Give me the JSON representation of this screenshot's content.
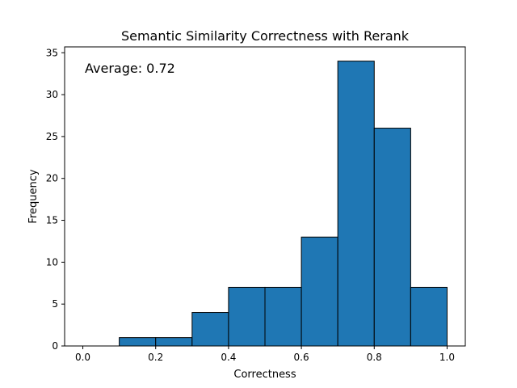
{
  "chart_data": {
    "type": "bar",
    "title": "Semantic Similarity Correctness with Rerank",
    "xlabel": "Correctness",
    "ylabel": "Frequency",
    "annotation": "Average: 0.72",
    "bins": [
      {
        "start": 0.0,
        "end": 0.1,
        "value": 0
      },
      {
        "start": 0.1,
        "end": 0.2,
        "value": 1
      },
      {
        "start": 0.2,
        "end": 0.3,
        "value": 1
      },
      {
        "start": 0.3,
        "end": 0.4,
        "value": 4
      },
      {
        "start": 0.4,
        "end": 0.5,
        "value": 7
      },
      {
        "start": 0.5,
        "end": 0.6,
        "value": 7
      },
      {
        "start": 0.6,
        "end": 0.7,
        "value": 13
      },
      {
        "start": 0.7,
        "end": 0.8,
        "value": 34
      },
      {
        "start": 0.8,
        "end": 0.9,
        "value": 26
      },
      {
        "start": 0.9,
        "end": 1.0,
        "value": 7
      }
    ],
    "xlim": [
      -0.05,
      1.05
    ],
    "ylim": [
      0,
      35.7
    ],
    "xticks": [
      0.0,
      0.2,
      0.4,
      0.6,
      0.8,
      1.0
    ],
    "xtick_labels": [
      "0.0",
      "0.2",
      "0.4",
      "0.6",
      "0.8",
      "1.0"
    ],
    "yticks": [
      0,
      5,
      10,
      15,
      20,
      25,
      30,
      35
    ],
    "ytick_labels": [
      "0",
      "5",
      "10",
      "15",
      "20",
      "25",
      "30",
      "35"
    ],
    "grid": false,
    "colors": {
      "bar_fill": "#1f77b4",
      "bar_edge": "#000000"
    }
  }
}
